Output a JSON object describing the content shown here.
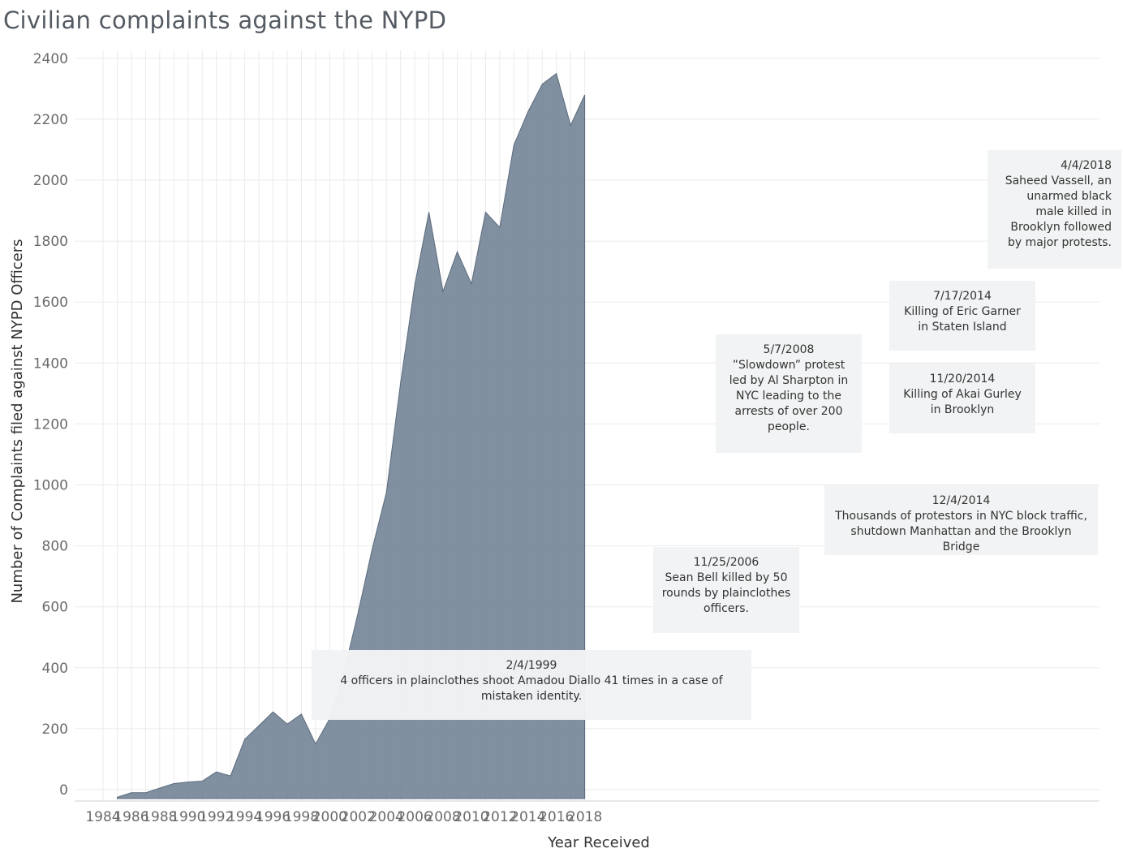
{
  "title": "Civilian complaints against the NYPD",
  "colors": {
    "area": "#6b7d91",
    "area_stroke": "#5a6a7c",
    "grid": "#ebebeb"
  },
  "chart_data": {
    "type": "area",
    "title": "Civilian complaints against the NYPD",
    "xlabel": "Year Received",
    "ylabel": "Number of Complaints filed against NYPD Officers",
    "xlim": [
      1983,
      2020
    ],
    "ylim": [
      -30,
      2480
    ],
    "x_ticks": [
      "1984",
      "1986",
      "1988",
      "1990",
      "1992",
      "1994",
      "1996",
      "1998",
      "2000",
      "2002",
      "2004",
      "2006",
      "2008",
      "2010",
      "2012",
      "2014",
      "2016",
      "2018"
    ],
    "y_ticks": [
      "0",
      "200",
      "400",
      "600",
      "800",
      "1000",
      "1200",
      "1400",
      "1600",
      "1800",
      "2000",
      "2200",
      "2400"
    ],
    "x": [
      1985,
      1986,
      1987,
      1988,
      1989,
      1990,
      1991,
      1992,
      1993,
      1994,
      1995,
      1996,
      1997,
      1998,
      1999,
      2000,
      2001,
      2002,
      2003,
      2004,
      2005,
      2006,
      2007,
      2008,
      2009,
      2010,
      2011,
      2012,
      2013,
      2014,
      2015,
      2016,
      2017,
      2018
    ],
    "values": [
      -25,
      -10,
      -10,
      5,
      20,
      25,
      28,
      58,
      45,
      165,
      210,
      255,
      215,
      248,
      150,
      233,
      385,
      580,
      790,
      975,
      1335,
      1655,
      1895,
      1635,
      1765,
      1660,
      1895,
      1845,
      2115,
      2225,
      2315,
      2350,
      2180,
      2280
    ],
    "grid": true,
    "annotations": [
      {
        "date": "2/4/1999",
        "text": "4 officers in plainclothes shoot Amadou Diallo 41 times in a case of mistaken identity."
      },
      {
        "date": "11/25/2006",
        "text": "Sean Bell killed by 50 rounds by plainclothes officers."
      },
      {
        "date": "5/7/2008",
        "text": "”Slowdown” protest led by Al Sharpton in NYC leading to the arrests of over 200 people."
      },
      {
        "date": "7/17/2014",
        "text": "Killing of Eric Garner in Staten Island"
      },
      {
        "date": "11/20/2014",
        "text": "Killing of Akai Gurley in Brooklyn"
      },
      {
        "date": "12/4/2014",
        "text": "Thousands of protestors in NYC block traffic, shutdown Manhattan and the Brooklyn Bridge"
      },
      {
        "date": "4/4/2018",
        "text": "Saheed Vassell, an unarmed black male killed in Brooklyn followed by major protests."
      }
    ]
  }
}
